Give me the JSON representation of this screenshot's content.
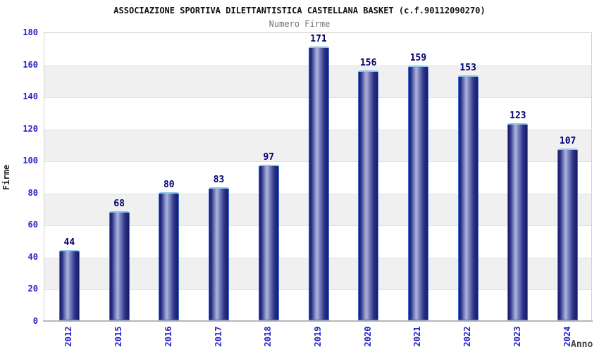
{
  "chart_data": {
    "type": "bar",
    "title": "ASSOCIAZIONE SPORTIVA DILETTANTISTICA CASTELLANA BASKET (c.f.90112090270)",
    "subtitle": "Numero Firme",
    "xlabel": "Anno",
    "ylabel": "Firme",
    "categories": [
      "2012",
      "2015",
      "2016",
      "2017",
      "2018",
      "2019",
      "2020",
      "2021",
      "2022",
      "2023",
      "2024"
    ],
    "values": [
      44,
      68,
      80,
      83,
      97,
      171,
      156,
      159,
      153,
      123,
      107
    ],
    "ylim": [
      0,
      180
    ],
    "ytick_step": 20,
    "grid": "horizontal-bands-alternating",
    "legend": "none",
    "colors": {
      "bar_dark": "#191968",
      "bar_light": "#aeb4db",
      "bar_border_side": "#3f74d9",
      "bar_border_top": "#8cc8ec",
      "tick_label": "#2323cc",
      "value_label": "#00006e",
      "band_gray": "#f0f0f0",
      "title": "#111111",
      "subtitle": "#72727c",
      "axis_label": "#454545"
    }
  }
}
